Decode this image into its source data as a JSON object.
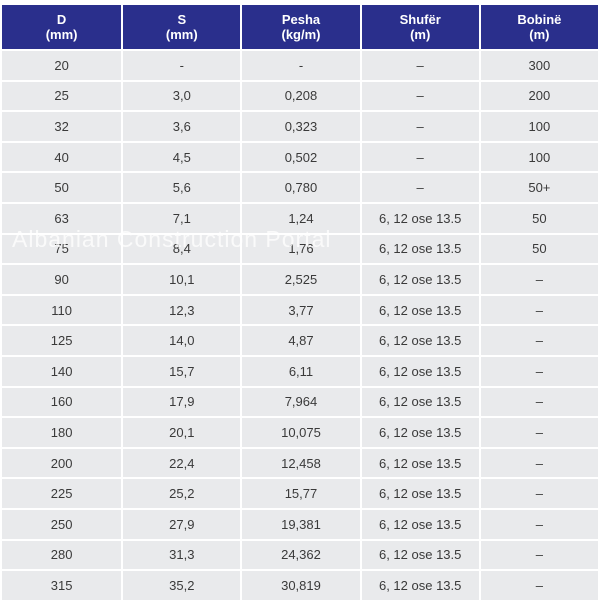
{
  "headers": [
    {
      "line1": "D",
      "line2": "(mm)"
    },
    {
      "line1": "S",
      "line2": "(mm)"
    },
    {
      "line1": "Pesha",
      "line2": "(kg/m)"
    },
    {
      "line1": "Shufër",
      "line2": "(m)"
    },
    {
      "line1": "Bobinë",
      "line2": "(m)"
    }
  ],
  "rows": [
    [
      "20",
      "-",
      "-",
      "–",
      "300"
    ],
    [
      "25",
      "3,0",
      "0,208",
      "–",
      "200"
    ],
    [
      "32",
      "3,6",
      "0,323",
      "–",
      "100"
    ],
    [
      "40",
      "4,5",
      "0,502",
      "–",
      "100"
    ],
    [
      "50",
      "5,6",
      "0,780",
      "–",
      "50+"
    ],
    [
      "63",
      "7,1",
      "1,24",
      "6, 12 ose 13.5",
      "50"
    ],
    [
      "75",
      "8,4",
      "1,76",
      "6, 12 ose 13.5",
      "50"
    ],
    [
      "90",
      "10,1",
      "2,525",
      "6, 12 ose 13.5",
      "–"
    ],
    [
      "110",
      "12,3",
      "3,77",
      "6, 12 ose 13.5",
      "–"
    ],
    [
      "125",
      "14,0",
      "4,87",
      "6, 12 ose 13.5",
      "–"
    ],
    [
      "140",
      "15,7",
      "6,11",
      "6, 12 ose 13.5",
      "–"
    ],
    [
      "160",
      "17,9",
      "7,964",
      "6, 12 ose 13.5",
      "–"
    ],
    [
      "180",
      "20,1",
      "10,075",
      "6, 12 ose 13.5",
      "–"
    ],
    [
      "200",
      "22,4",
      "12,458",
      "6, 12 ose 13.5",
      "–"
    ],
    [
      "225",
      "25,2",
      "15,77",
      "6, 12 ose 13.5",
      "–"
    ],
    [
      "250",
      "27,9",
      "19,381",
      "6, 12 ose 13.5",
      "–"
    ],
    [
      "280",
      "31,3",
      "24,362",
      "6, 12 ose 13.5",
      "–"
    ],
    [
      "315",
      "35,2",
      "30,819",
      "6, 12 ose 13.5",
      "–"
    ]
  ],
  "watermark": "Albanian Construction Portal",
  "colors": {
    "header_bg": "#2a2f8c",
    "header_text": "#ffffff",
    "cell_bg": "#e9eaec",
    "cell_text": "#3a3a3a"
  }
}
